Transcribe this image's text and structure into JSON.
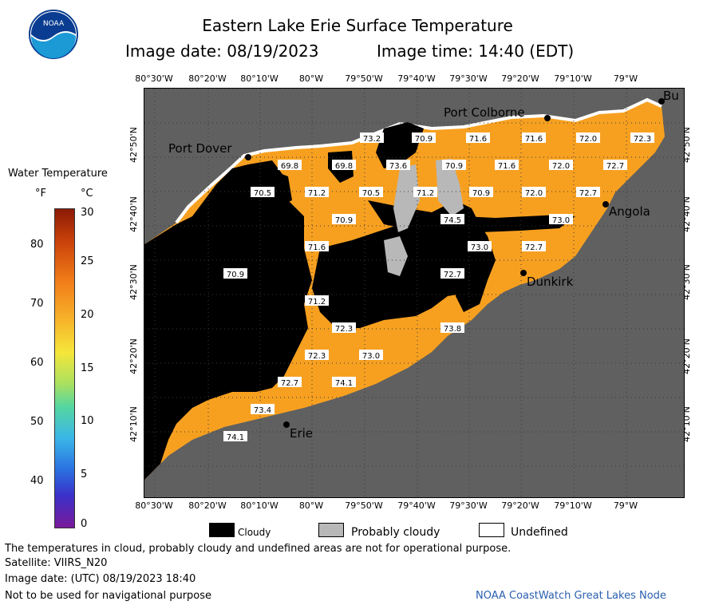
{
  "header": {
    "title": "Eastern Lake Erie Surface Temperature",
    "image_date": "Image date: 08/19/2023",
    "image_time": "Image time: 14:40 (EDT)"
  },
  "logo": {
    "text": "NOAA"
  },
  "map": {
    "lon_labels": [
      "80°30'W",
      "80°20'W",
      "80°10'W",
      "80°W",
      "79°50'W",
      "79°40'W",
      "79°30'W",
      "79°20'W",
      "79°10'W",
      "79°W"
    ],
    "lat_labels": [
      "42°50'N",
      "42°40'N",
      "42°30'N",
      "42°20'N",
      "42°10'N"
    ],
    "places": [
      {
        "name": "Port Colborne"
      },
      {
        "name": "Port Dover"
      },
      {
        "name": "Bu"
      },
      {
        "name": "Angola"
      },
      {
        "name": "Dunkirk"
      },
      {
        "name": "Erie"
      }
    ],
    "temperatures": [
      "73.2",
      "70.9",
      "71.6",
      "71.6",
      "72.0",
      "72.3",
      "69.8",
      "69.8",
      "73.6",
      "70.9",
      "71.6",
      "72.0",
      "72.7",
      "70.5",
      "71.2",
      "70.5",
      "71.2",
      "70.9",
      "72.0",
      "72.7",
      "70.9",
      "74.5",
      "73.0",
      "71.6",
      "73.0",
      "72.7",
      "70.9",
      "72.7",
      "71.2",
      "73.8",
      "72.3",
      "72.3",
      "73.0",
      "72.7",
      "74.1",
      "73.4",
      "74.1"
    ],
    "colors": {
      "water": "#f7a020",
      "land": "#606060",
      "cloud": "#000000",
      "probably_cloudy": "#b8b8b8",
      "undefined": "#ffffff"
    }
  },
  "legend": {
    "title": "Water Temperature",
    "unit_f": "°F",
    "unit_c": "°C",
    "f_ticks": [
      "80",
      "70",
      "60",
      "50",
      "40"
    ],
    "c_ticks": [
      "30",
      "25",
      "20",
      "15",
      "10",
      "5",
      "0"
    ]
  },
  "key": {
    "cloudy": "Cloudy",
    "probably_cloudy": "Probably cloudy",
    "undefined": "Undefined"
  },
  "footer": {
    "disclaimer": "The temperatures in cloud, probably cloudy and undefined areas are not for operational purpose.",
    "satellite": "Satellite: VIIRS_N20",
    "utc": "Image date: (UTC) 08/19/2023  18:40",
    "nav": "Not to be used for navigational purpose",
    "credit": "NOAA CoastWatch Great Lakes Node"
  }
}
